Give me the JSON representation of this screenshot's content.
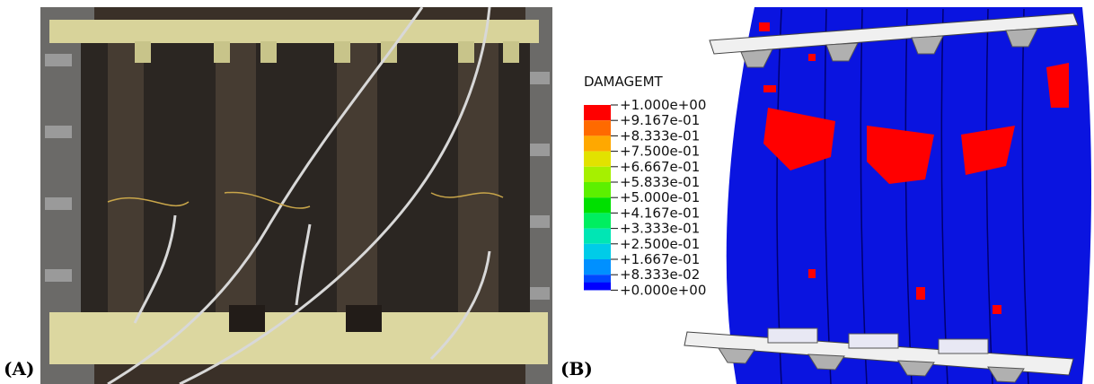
{
  "panel_a": {
    "label": "(A)"
  },
  "panel_b": {
    "label": "(B)",
    "legend": {
      "title": "DAMAGEMT",
      "labels": [
        "+1.000e+00",
        "+9.167e-01",
        "+8.333e-01",
        "+7.500e-01",
        "+6.667e-01",
        "+5.833e-01",
        "+5.000e-01",
        "+4.167e-01",
        "+3.333e-01",
        "+2.500e-01",
        "+1.667e-01",
        "+8.333e-02",
        "+0.000e+00"
      ],
      "colors": [
        "#ff0000",
        "#ff6a00",
        "#ffa800",
        "#e2e200",
        "#a6f000",
        "#5cf000",
        "#00e000",
        "#00ee60",
        "#00e6b4",
        "#00cce8",
        "#0090ff",
        "#0048ff",
        "#0000ff"
      ]
    }
  }
}
